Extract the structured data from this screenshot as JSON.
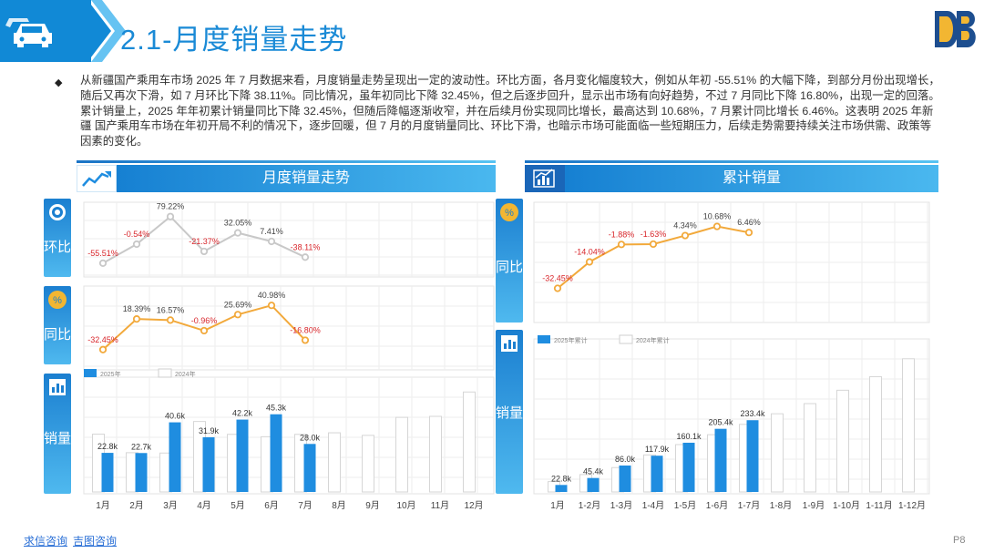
{
  "header": {
    "title": "2.1-月度销量走势",
    "bullet": "◆",
    "paragraph": "从新疆国产乘用车市场 2025 年 7 月数据来看，月度销量走势呈现出一定的波动性。环比方面，各月变化幅度较大，例如从年初 -55.51% 的大幅下降，到部分月份出现增长，随后又再次下滑，如 7 月环比下降 38.11%。同比情况，虽年初同比下降 32.45%，但之后逐步回升，显示出市场有向好趋势，不过 7 月同比下降 16.80%，出现一定的回落。累计销量上，2025 年年初累计销量同比下降 32.45%，但随后降幅逐渐收窄，并在后续月份实现同比增长，最高达到 10.68%，7 月累计同比增长 6.46%。这表明 2025 年新疆 国产乘用车市场在年初开局不利的情况下，逐步回暖，但 7 月的月度销量同比、环比下滑，也暗示市场可能面临一些短期压力，后续走势需要持续关注市场供需、政策等因素的变化。"
  },
  "left_panel": {
    "banner": "月度销量走势",
    "side_mom": "环比",
    "side_yoy": "同比",
    "side_sales": "销量"
  },
  "right_panel": {
    "banner": "累计销量",
    "side_yoy": "同比",
    "side_sales": "销量"
  },
  "footer": {
    "link1": "求信咨询",
    "link2": "吉图咨询",
    "page": "P8"
  },
  "colors": {
    "blue": "#1f8de0",
    "orange": "#f2a93b",
    "grey_line": "#c8c8c8",
    "red_label": "#d8262b"
  },
  "chart_data": [
    {
      "type": "line",
      "name": "monthly_mom",
      "x": [
        "1月",
        "2月",
        "3月",
        "4月",
        "5月",
        "6月",
        "7月"
      ],
      "values": [
        -55.51,
        -0.54,
        79.22,
        -21.37,
        32.05,
        7.41,
        -38.11
      ],
      "labels": [
        "-55.51%",
        "-0.54%",
        "79.22%",
        "-21.37%",
        "32.05%",
        "7.41%",
        "-38.11%"
      ],
      "ylim": [
        -90,
        110
      ]
    },
    {
      "type": "line",
      "name": "monthly_yoy",
      "x": [
        "1月",
        "2月",
        "3月",
        "4月",
        "5月",
        "6月",
        "7月"
      ],
      "values": [
        -32.45,
        18.39,
        16.57,
        -0.96,
        25.69,
        40.98,
        -16.8
      ],
      "labels": [
        "-32.45%",
        "18.39%",
        "16.57%",
        "-0.96%",
        "25.69%",
        "40.98%",
        "-16.80%"
      ],
      "ylim": [
        -60,
        70
      ]
    },
    {
      "type": "bar",
      "name": "monthly_sales",
      "categories": [
        "1月",
        "2月",
        "3月",
        "4月",
        "5月",
        "6月",
        "7月",
        "8月",
        "9月",
        "10月",
        "11月",
        "12月"
      ],
      "series": [
        {
          "name": "2025年",
          "values": [
            22.8,
            22.7,
            40.6,
            31.9,
            42.2,
            45.3,
            28.0,
            null,
            null,
            null,
            null,
            null
          ]
        },
        {
          "name": "2024年",
          "values": [
            33.7,
            22.9,
            22.7,
            41.1,
            33.6,
            32.2,
            33.6,
            34.5,
            33.0,
            43.5,
            44.1,
            58.3
          ]
        }
      ],
      "labels": [
        "22.8k",
        "22.7k",
        "40.6k",
        "31.9k",
        "42.2k",
        "45.3k",
        "28.0k"
      ],
      "ylim": [
        0,
        68
      ]
    },
    {
      "type": "line",
      "name": "cumulative_yoy",
      "x": [
        "1月",
        "1-2月",
        "1-3月",
        "1-4月",
        "1-5月",
        "1-6月",
        "1-7月"
      ],
      "values": [
        -32.45,
        -14.04,
        -1.88,
        -1.63,
        4.34,
        10.68,
        6.46
      ],
      "labels": [
        "-32.45%",
        "-14.04%",
        "-1.88%",
        "-1.63%",
        "4.34%",
        "10.68%",
        "6.46%"
      ],
      "ylim": [
        -55,
        25
      ]
    },
    {
      "type": "bar",
      "name": "cumulative_sales",
      "categories": [
        "1月",
        "1-2月",
        "1-3月",
        "1-4月",
        "1-5月",
        "1-6月",
        "1-7月",
        "1-8月",
        "1-9月",
        "1-10月",
        "1-11月",
        "1-12月"
      ],
      "series": [
        {
          "name": "2025年累计",
          "values": [
            22.8,
            45.4,
            86.0,
            117.9,
            160.1,
            205.4,
            233.4,
            null,
            null,
            null,
            null,
            null
          ]
        },
        {
          "name": "2024年累计",
          "values": [
            33.7,
            56.6,
            79.3,
            120.4,
            154.0,
            186.2,
            219.8,
            254.3,
            287.3,
            330.8,
            374.9,
            433.2
          ]
        }
      ],
      "labels": [
        "22.8k",
        "45.4k",
        "86.0k",
        "117.9k",
        "160.1k",
        "205.4k",
        "233.4k"
      ],
      "ylim": [
        0,
        480
      ]
    }
  ]
}
